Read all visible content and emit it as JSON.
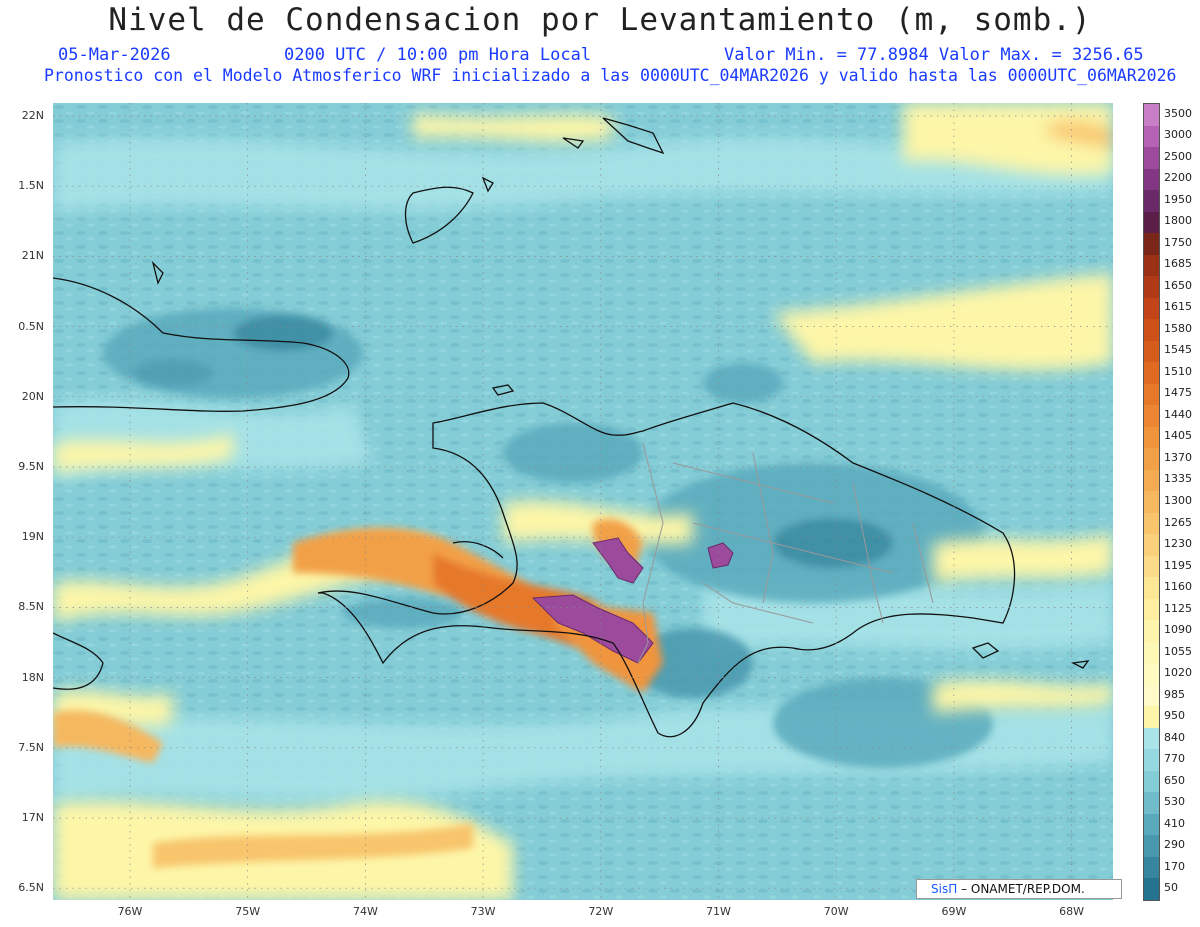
{
  "header": {
    "title": "Nivel de Condensacion por Levantamiento (m, somb.)",
    "date": "05-Mar-2026",
    "time": "0200 UTC / 10:00 pm Hora Local",
    "min_max": "Valor Min. = 77.8984  Valor Max. = 3256.65",
    "model_info": "Pronostico con el Modelo Atmosferico WRF inicializado a las 0000UTC_04MAR2026 y valido hasta las  0000UTC_06MAR2026"
  },
  "axes": {
    "lat_labels": [
      "22N",
      "1.5N",
      "21N",
      "0.5N",
      "20N",
      "9.5N",
      "19N",
      "8.5N",
      "18N",
      "7.5N",
      "17N",
      "6.5N"
    ],
    "lon_labels": [
      "76W",
      "75W",
      "74W",
      "73W",
      "72W",
      "71W",
      "70W",
      "69W",
      "68W"
    ]
  },
  "colorbar": {
    "levels": [
      "3500",
      "3000",
      "2500",
      "2200",
      "1950",
      "1800",
      "1750",
      "1685",
      "1650",
      "1615",
      "1580",
      "1545",
      "1510",
      "1475",
      "1440",
      "1405",
      "1370",
      "1335",
      "1300",
      "1265",
      "1230",
      "1195",
      "1160",
      "1125",
      "1090",
      "1055",
      "1020",
      "985",
      "950",
      "840",
      "770",
      "650",
      "530",
      "410",
      "290",
      "170",
      "50"
    ],
    "colors": [
      "#c87fc8",
      "#b562b5",
      "#9c4a9c",
      "#833683",
      "#6a2a6a",
      "#5a1e48",
      "#7a2618",
      "#9a3014",
      "#b03a16",
      "#c24418",
      "#cc5018",
      "#d65c1c",
      "#e06a22",
      "#e6782a",
      "#ec8632",
      "#f0943c",
      "#f2a046",
      "#f4ac52",
      "#f6b85e",
      "#f8c46c",
      "#fad07a",
      "#fcdc88",
      "#fde694",
      "#fdeea0",
      "#fef4ac",
      "#fef8b6",
      "#fefac0",
      "#fefbc8",
      "#fdf6a8",
      "#a8e4e8",
      "#96d8e0",
      "#84ccd6",
      "#70bccb",
      "#5aaabd",
      "#4898ae",
      "#36869e",
      "#247490"
    ]
  },
  "credit": {
    "sis": "SisΠ",
    "text": "– ONAMET/REP.DOM."
  }
}
